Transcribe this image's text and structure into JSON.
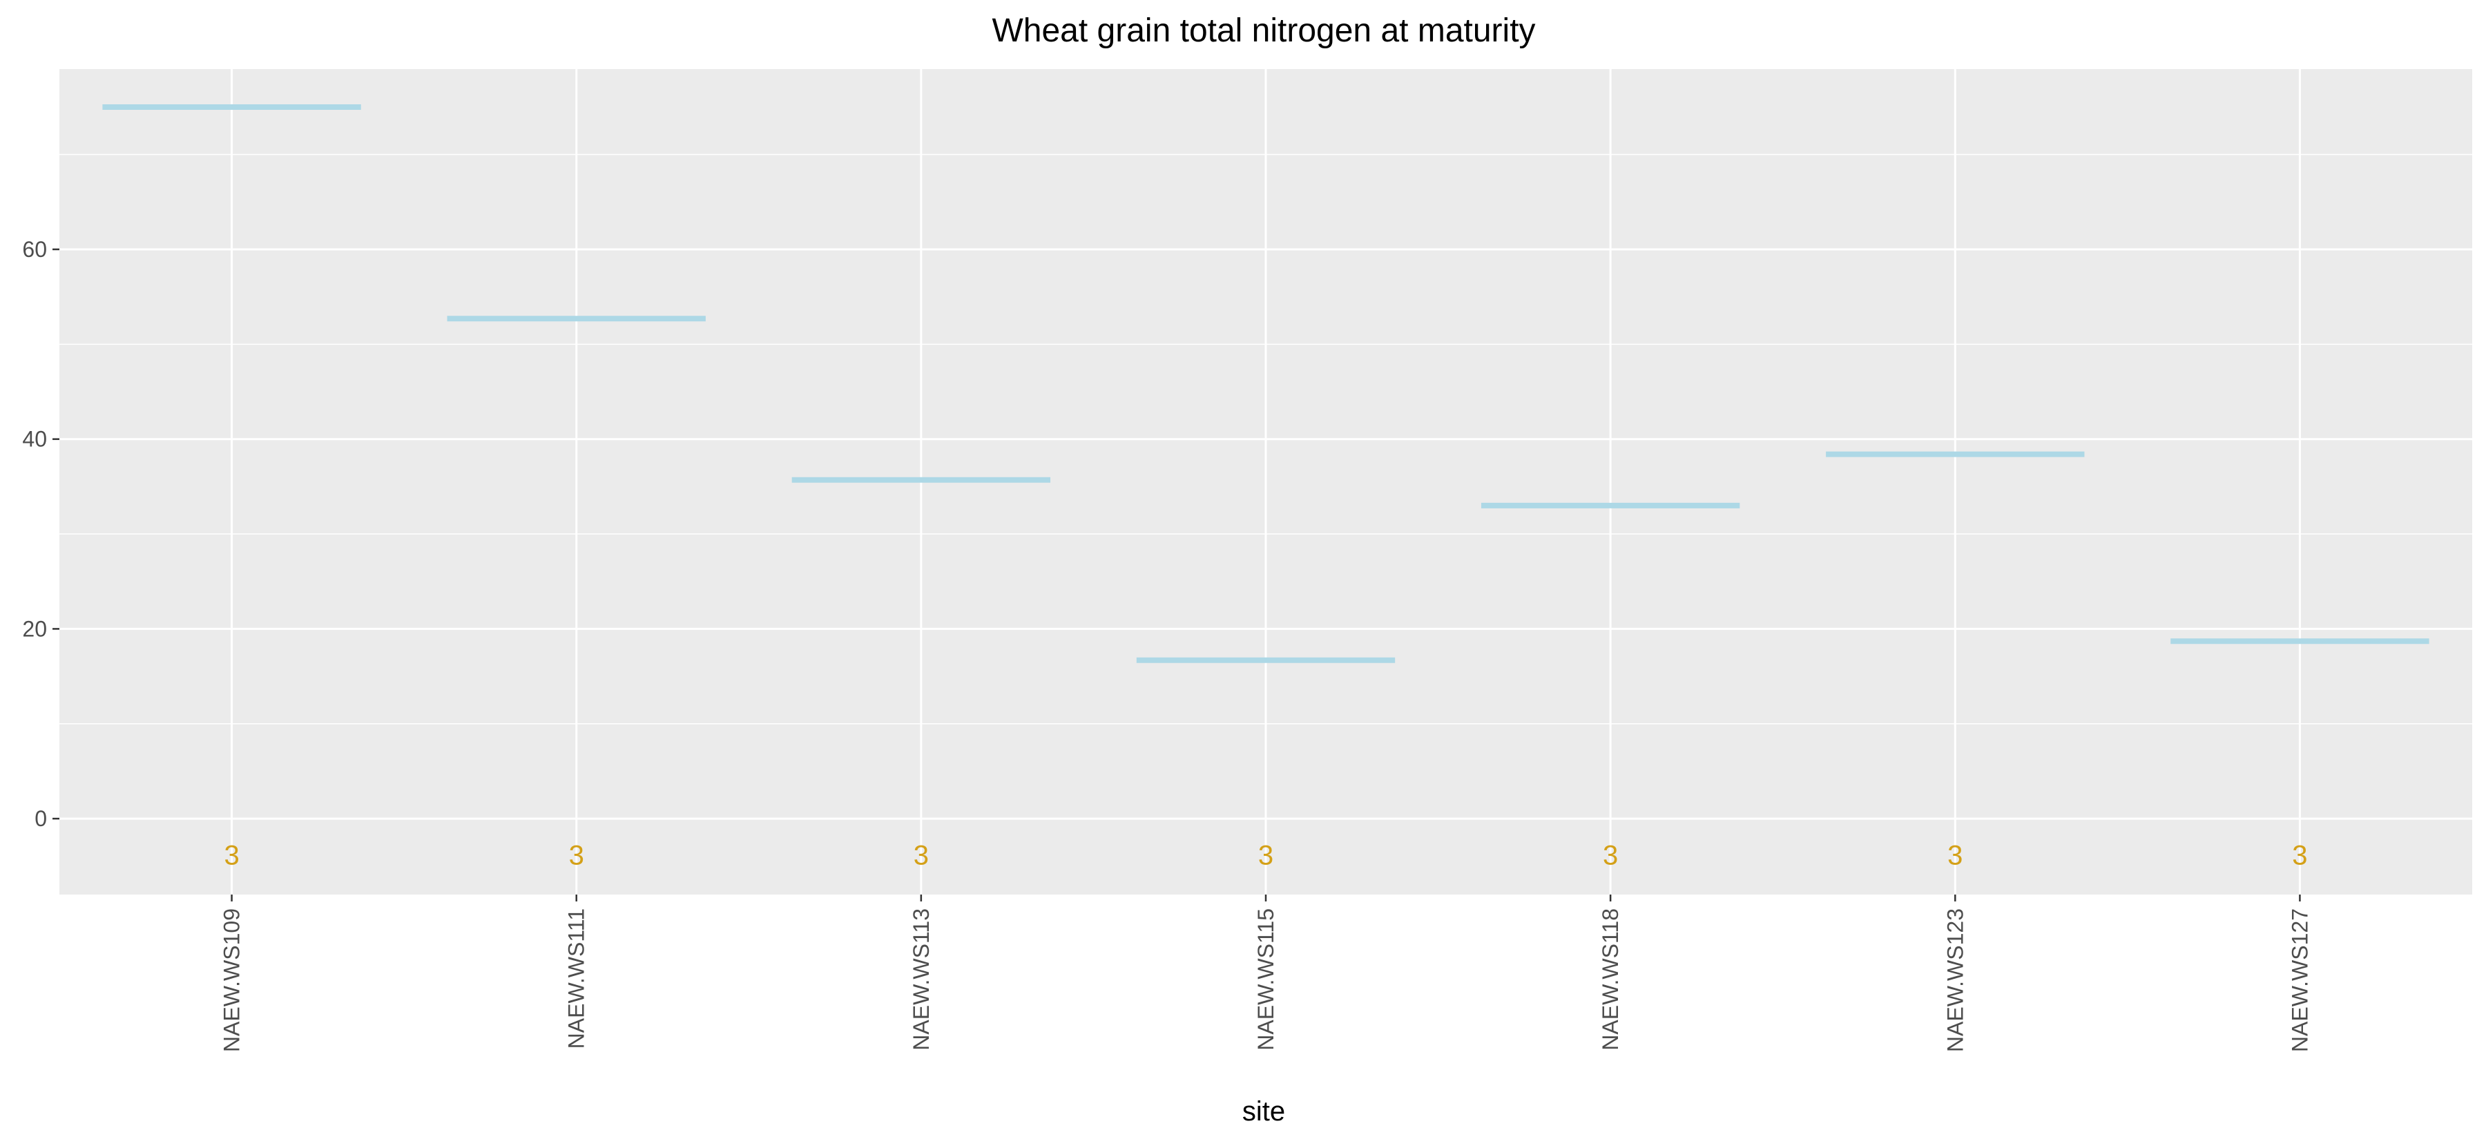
{
  "chart_data": {
    "type": "bar",
    "title": "Wheat grain total nitrogen at maturity",
    "xlabel": "site",
    "ylabel": "",
    "categories": [
      "NAEW.WS109",
      "NAEW.WS111",
      "NAEW.WS113",
      "NAEW.WS115",
      "NAEW.WS118",
      "NAEW.WS123",
      "NAEW.WS127"
    ],
    "values": [
      75,
      52.7,
      35.7,
      16.7,
      33,
      38.4,
      18.7
    ],
    "counts": [
      "3",
      "3",
      "3",
      "3",
      "3",
      "3",
      "3"
    ],
    "count_y": -3.8,
    "ylim": [
      -8,
      79
    ],
    "yticks": [
      0,
      20,
      40,
      60
    ],
    "yminor": [
      10,
      30,
      50,
      70
    ],
    "grid": true,
    "colors": {
      "panel": "#ebebeb",
      "grid": "#ffffff",
      "mean_line": "#add8e6",
      "count_text": "#d4a017",
      "tick_text": "#4d4d4d",
      "tick_mark": "#333333"
    }
  }
}
